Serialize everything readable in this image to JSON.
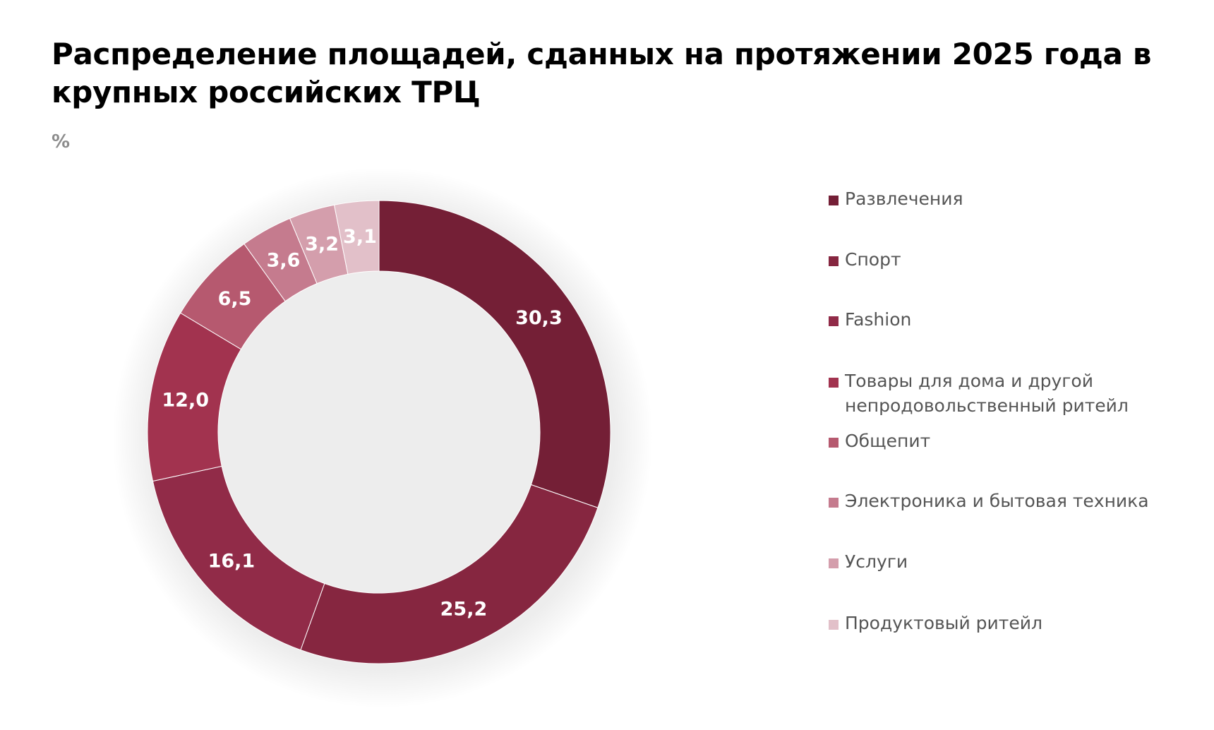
{
  "header": {
    "title": "Распределение площадей, сданных на протяжении 2025 года в крупных российских ТРЦ",
    "unit": "%"
  },
  "chart_data": {
    "type": "pie",
    "style": "donut",
    "title": "Распределение площадей, сданных на протяжении 2025 года в крупных российских ТРЦ",
    "unit": "%",
    "legend_position": "right",
    "slices": [
      {
        "category": "Развлечения",
        "value": 30.3,
        "label": "30,3",
        "color": "#741f36"
      },
      {
        "category": "Спорт",
        "value": 25.2,
        "label": "25,2",
        "color": "#862640"
      },
      {
        "category": "Fashion",
        "value": 16.1,
        "label": "16,1",
        "color": "#912b48"
      },
      {
        "category": "Товары для дома и другой непродовольственный ритейл",
        "value": 12.0,
        "label": "12,0",
        "color": "#a2334f"
      },
      {
        "category": "Общепит",
        "value": 6.5,
        "label": "6,5",
        "color": "#b6596f"
      },
      {
        "category": "Электроника и бытовая техника",
        "value": 3.6,
        "label": "3,6",
        "color": "#c57b8e"
      },
      {
        "category": "Услуги",
        "value": 3.2,
        "label": "3,2",
        "color": "#d49eac"
      },
      {
        "category": "Продуктовый ритейл",
        "value": 3.1,
        "label": "3,1",
        "color": "#e2c0c9"
      }
    ]
  }
}
